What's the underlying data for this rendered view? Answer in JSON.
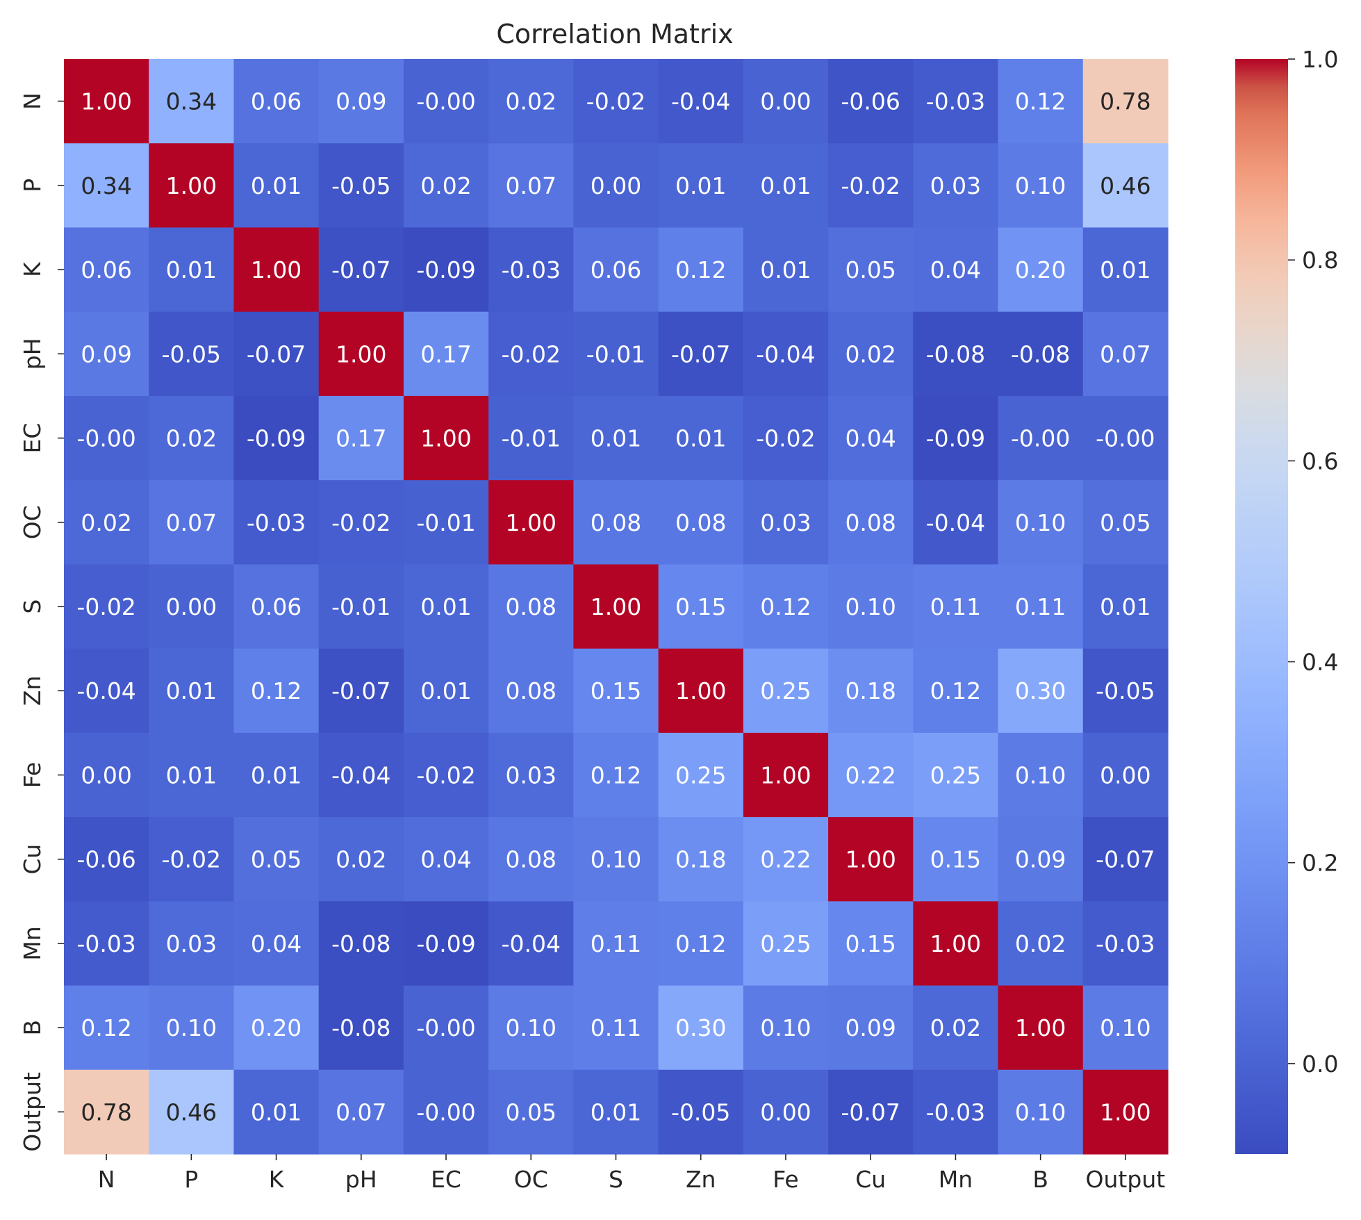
{
  "chart_data": {
    "type": "heatmap",
    "title": "Correlation Matrix",
    "x_labels": [
      "N",
      "P",
      "K",
      "pH",
      "EC",
      "OC",
      "S",
      "Zn",
      "Fe",
      "Cu",
      "Mn",
      "B",
      "Output"
    ],
    "y_labels": [
      "N",
      "P",
      "K",
      "pH",
      "EC",
      "OC",
      "S",
      "Zn",
      "Fe",
      "Cu",
      "Mn",
      "B",
      "Output"
    ],
    "values": [
      [
        1.0,
        0.34,
        0.06,
        0.09,
        -0.0,
        0.02,
        -0.02,
        -0.04,
        0.0,
        -0.06,
        -0.03,
        0.12,
        0.78
      ],
      [
        0.34,
        1.0,
        0.01,
        -0.05,
        0.02,
        0.07,
        0.0,
        0.01,
        0.01,
        -0.02,
        0.03,
        0.1,
        0.46
      ],
      [
        0.06,
        0.01,
        1.0,
        -0.07,
        -0.09,
        -0.03,
        0.06,
        0.12,
        0.01,
        0.05,
        0.04,
        0.2,
        0.01
      ],
      [
        0.09,
        -0.05,
        -0.07,
        1.0,
        0.17,
        -0.02,
        -0.01,
        -0.07,
        -0.04,
        0.02,
        -0.08,
        -0.08,
        0.07
      ],
      [
        -0.0,
        0.02,
        -0.09,
        0.17,
        1.0,
        -0.01,
        0.01,
        0.01,
        -0.02,
        0.04,
        -0.09,
        -0.0,
        -0.0
      ],
      [
        0.02,
        0.07,
        -0.03,
        -0.02,
        -0.01,
        1.0,
        0.08,
        0.08,
        0.03,
        0.08,
        -0.04,
        0.1,
        0.05
      ],
      [
        -0.02,
        0.0,
        0.06,
        -0.01,
        0.01,
        0.08,
        1.0,
        0.15,
        0.12,
        0.1,
        0.11,
        0.11,
        0.01
      ],
      [
        -0.04,
        0.01,
        0.12,
        -0.07,
        0.01,
        0.08,
        0.15,
        1.0,
        0.25,
        0.18,
        0.12,
        0.3,
        -0.05
      ],
      [
        0.0,
        0.01,
        0.01,
        -0.04,
        -0.02,
        0.03,
        0.12,
        0.25,
        1.0,
        0.22,
        0.25,
        0.1,
        0.0
      ],
      [
        -0.06,
        -0.02,
        0.05,
        0.02,
        0.04,
        0.08,
        0.1,
        0.18,
        0.22,
        1.0,
        0.15,
        0.09,
        -0.07
      ],
      [
        -0.03,
        0.03,
        0.04,
        -0.08,
        -0.09,
        -0.04,
        0.11,
        0.12,
        0.25,
        0.15,
        1.0,
        0.02,
        -0.03
      ],
      [
        0.12,
        0.1,
        0.2,
        -0.08,
        -0.0,
        0.1,
        0.11,
        0.3,
        0.1,
        0.09,
        0.02,
        1.0,
        0.1
      ],
      [
        0.78,
        0.46,
        0.01,
        0.07,
        -0.0,
        0.05,
        0.01,
        -0.05,
        0.0,
        -0.07,
        -0.03,
        0.1,
        1.0
      ]
    ],
    "annotations": [
      [
        "1.00",
        "0.34",
        "0.06",
        "0.09",
        "-0.00",
        "0.02",
        "-0.02",
        "-0.04",
        "0.00",
        "-0.06",
        "-0.03",
        "0.12",
        "0.78"
      ],
      [
        "0.34",
        "1.00",
        "0.01",
        "-0.05",
        "0.02",
        "0.07",
        "0.00",
        "0.01",
        "0.01",
        "-0.02",
        "0.03",
        "0.10",
        "0.46"
      ],
      [
        "0.06",
        "0.01",
        "1.00",
        "-0.07",
        "-0.09",
        "-0.03",
        "0.06",
        "0.12",
        "0.01",
        "0.05",
        "0.04",
        "0.20",
        "0.01"
      ],
      [
        "0.09",
        "-0.05",
        "-0.07",
        "1.00",
        "0.17",
        "-0.02",
        "-0.01",
        "-0.07",
        "-0.04",
        "0.02",
        "-0.08",
        "-0.08",
        "0.07"
      ],
      [
        "-0.00",
        "0.02",
        "-0.09",
        "0.17",
        "1.00",
        "-0.01",
        "0.01",
        "0.01",
        "-0.02",
        "0.04",
        "-0.09",
        "-0.00",
        "-0.00"
      ],
      [
        "0.02",
        "0.07",
        "-0.03",
        "-0.02",
        "-0.01",
        "1.00",
        "0.08",
        "0.08",
        "0.03",
        "0.08",
        "-0.04",
        "0.10",
        "0.05"
      ],
      [
        "-0.02",
        "0.00",
        "0.06",
        "-0.01",
        "0.01",
        "0.08",
        "1.00",
        "0.15",
        "0.12",
        "0.10",
        "0.11",
        "0.11",
        "0.01"
      ],
      [
        "-0.04",
        "0.01",
        "0.12",
        "-0.07",
        "0.01",
        "0.08",
        "0.15",
        "1.00",
        "0.25",
        "0.18",
        "0.12",
        "0.30",
        "-0.05"
      ],
      [
        "0.00",
        "0.01",
        "0.01",
        "-0.04",
        "-0.02",
        "0.03",
        "0.12",
        "0.25",
        "1.00",
        "0.22",
        "0.25",
        "0.10",
        "0.00"
      ],
      [
        "-0.06",
        "-0.02",
        "0.05",
        "0.02",
        "0.04",
        "0.08",
        "0.10",
        "0.18",
        "0.22",
        "1.00",
        "0.15",
        "0.09",
        "-0.07"
      ],
      [
        "-0.03",
        "0.03",
        "0.04",
        "-0.08",
        "-0.09",
        "-0.04",
        "0.11",
        "0.12",
        "0.25",
        "0.15",
        "1.00",
        "0.02",
        "-0.03"
      ],
      [
        "0.12",
        "0.10",
        "0.20",
        "-0.08",
        "-0.00",
        "0.10",
        "0.11",
        "0.30",
        "0.10",
        "0.09",
        "0.02",
        "1.00",
        "0.10"
      ],
      [
        "0.78",
        "0.46",
        "0.01",
        "0.07",
        "-0.00",
        "0.05",
        "0.01",
        "-0.05",
        "0.00",
        "-0.07",
        "-0.03",
        "0.10",
        "1.00"
      ]
    ],
    "colormap": "coolwarm",
    "colorbar": {
      "vmin": -0.09,
      "vmax": 1.0,
      "ticks": [
        0.0,
        0.2,
        0.4,
        0.6,
        0.8,
        1.0
      ],
      "tick_labels": [
        "0.0",
        "0.2",
        "0.4",
        "0.6",
        "0.8",
        "1.0"
      ]
    },
    "xlabel": "",
    "ylabel": "",
    "grid": false,
    "legend": "colorbar-right"
  }
}
